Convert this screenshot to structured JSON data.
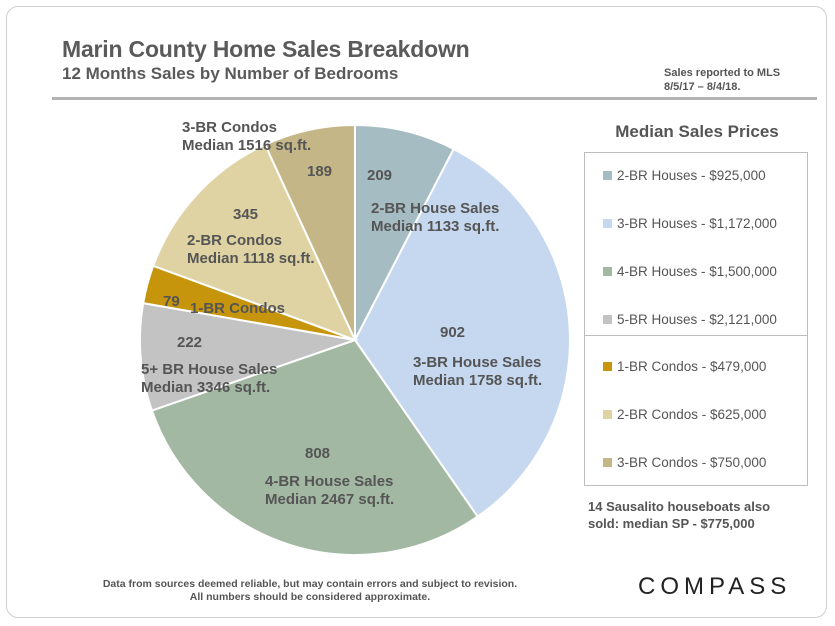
{
  "header": {
    "title": "Marin County Home Sales Breakdown",
    "subtitle": "12 Months Sales by Number of Bedrooms",
    "source_line1": "Sales reported to MLS",
    "source_line2": "8/5/17 – 8/4/18."
  },
  "chart_data": {
    "type": "pie",
    "slices": [
      {
        "value": 209,
        "value_label": "209",
        "label_lines": [
          "2-BR House Sales",
          "Median 1133 sq.ft."
        ],
        "color": "#a6bcc3"
      },
      {
        "value": 902,
        "value_label": "902",
        "label_lines": [
          "3-BR House Sales",
          "Median 1758 sq.ft."
        ],
        "color": "#c5d8ef"
      },
      {
        "value": 808,
        "value_label": "808",
        "label_lines": [
          "4-BR House Sales",
          "Median 2467 sq.ft."
        ],
        "color": "#a2b8a3"
      },
      {
        "value": 222,
        "value_label": "222",
        "label_lines": [
          "5+ BR House Sales",
          "Median 3346 sq.ft."
        ],
        "color": "#c3c3c3"
      },
      {
        "value": 79,
        "value_label": "79",
        "label_lines": [
          "1-BR Condos"
        ],
        "color": "#c7950c"
      },
      {
        "value": 345,
        "value_label": "345",
        "label_lines": [
          "2-BR Condos",
          "Median 1118 sq.ft."
        ],
        "color": "#dfd3a4"
      },
      {
        "value": 189,
        "value_label": "189",
        "label_lines": [
          "3-BR Condos",
          "Median 1516 sq.ft."
        ],
        "color": "#c4b686"
      }
    ],
    "start_angle_deg": 0,
    "direction": "clockwise"
  },
  "legend": {
    "title": "Median Sales Prices",
    "items": [
      {
        "label": "2-BR Houses - $925,000",
        "color": "#a6bcc3"
      },
      {
        "label": "3-BR Houses - $1,172,000",
        "color": "#c5d8ef"
      },
      {
        "label": "4-BR Houses - $1,500,000",
        "color": "#a2b8a3"
      },
      {
        "label": "5-BR Houses - $2,121,000",
        "color": "#c3c3c3"
      },
      {
        "label": "1-BR Condos - $479,000",
        "color": "#c7950c"
      },
      {
        "label": "2-BR Condos - $625,000",
        "color": "#dfd3a4"
      },
      {
        "label": "3-BR Condos - $750,000",
        "color": "#c4b686"
      }
    ]
  },
  "notes": {
    "houseboat_line1": "14 Sausalito houseboats also",
    "houseboat_line2": "sold: median SP - $775,000",
    "disclaimer_line1": "Data from sources deemed reliable, but may contain errors and subject to revision.",
    "disclaimer_line2": "All numbers should be considered approximate."
  },
  "brand": {
    "logo": "COMPASS"
  }
}
